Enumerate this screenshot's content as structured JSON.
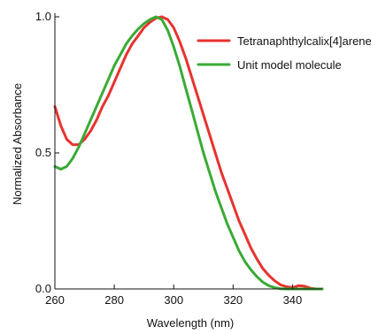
{
  "chart_data": {
    "type": "line",
    "title": "",
    "xlabel": "Wavelength (nm)",
    "ylabel": "Normalized Absorbance",
    "xlim": [
      260,
      350
    ],
    "ylim": [
      0.0,
      1.0
    ],
    "x_ticks": [
      260,
      280,
      300,
      320,
      340
    ],
    "x_tick_labels": [
      "260",
      "280",
      "300",
      "320",
      "340"
    ],
    "y_ticks": [
      0.0,
      0.5,
      1.0
    ],
    "y_tick_labels": [
      "0.0",
      "0.5",
      "1.0"
    ],
    "grid": false,
    "legend_position": "top-right",
    "series": [
      {
        "name": "Tetranaphthylcalix[4]arene",
        "color": "#e8322f",
        "points": [
          [
            260,
            0.67
          ],
          [
            262,
            0.6
          ],
          [
            264,
            0.55
          ],
          [
            266,
            0.53
          ],
          [
            268,
            0.53
          ],
          [
            270,
            0.55
          ],
          [
            272,
            0.58
          ],
          [
            274,
            0.62
          ],
          [
            276,
            0.67
          ],
          [
            278,
            0.71
          ],
          [
            280,
            0.76
          ],
          [
            282,
            0.81
          ],
          [
            284,
            0.86
          ],
          [
            286,
            0.9
          ],
          [
            288,
            0.93
          ],
          [
            290,
            0.96
          ],
          [
            292,
            0.98
          ],
          [
            294,
            0.995
          ],
          [
            296,
            1.0
          ],
          [
            298,
            0.99
          ],
          [
            300,
            0.96
          ],
          [
            302,
            0.91
          ],
          [
            304,
            0.85
          ],
          [
            306,
            0.78
          ],
          [
            308,
            0.71
          ],
          [
            310,
            0.64
          ],
          [
            312,
            0.57
          ],
          [
            314,
            0.5
          ],
          [
            316,
            0.43
          ],
          [
            318,
            0.37
          ],
          [
            320,
            0.31
          ],
          [
            322,
            0.25
          ],
          [
            324,
            0.2
          ],
          [
            326,
            0.15
          ],
          [
            328,
            0.11
          ],
          [
            330,
            0.075
          ],
          [
            332,
            0.05
          ],
          [
            334,
            0.03
          ],
          [
            336,
            0.015
          ],
          [
            338,
            0.008
          ],
          [
            340,
            0.005
          ],
          [
            342,
            0.012
          ],
          [
            344,
            0.01
          ],
          [
            346,
            0.003
          ],
          [
            348,
            0.0
          ],
          [
            350,
            0.0
          ]
        ]
      },
      {
        "name": "Unit model molecule",
        "color": "#3aaa35",
        "points": [
          [
            260,
            0.45
          ],
          [
            262,
            0.44
          ],
          [
            264,
            0.45
          ],
          [
            266,
            0.48
          ],
          [
            268,
            0.52
          ],
          [
            270,
            0.57
          ],
          [
            272,
            0.62
          ],
          [
            274,
            0.67
          ],
          [
            276,
            0.72
          ],
          [
            278,
            0.77
          ],
          [
            280,
            0.82
          ],
          [
            282,
            0.86
          ],
          [
            284,
            0.9
          ],
          [
            286,
            0.93
          ],
          [
            288,
            0.955
          ],
          [
            290,
            0.975
          ],
          [
            292,
            0.99
          ],
          [
            294,
            1.0
          ],
          [
            296,
            0.99
          ],
          [
            298,
            0.95
          ],
          [
            300,
            0.89
          ],
          [
            302,
            0.82
          ],
          [
            304,
            0.74
          ],
          [
            306,
            0.66
          ],
          [
            308,
            0.58
          ],
          [
            310,
            0.5
          ],
          [
            312,
            0.43
          ],
          [
            314,
            0.36
          ],
          [
            316,
            0.3
          ],
          [
            318,
            0.24
          ],
          [
            320,
            0.19
          ],
          [
            322,
            0.14
          ],
          [
            324,
            0.1
          ],
          [
            326,
            0.07
          ],
          [
            328,
            0.045
          ],
          [
            330,
            0.025
          ],
          [
            332,
            0.012
          ],
          [
            334,
            0.005
          ],
          [
            336,
            0.001
          ],
          [
            338,
            0.0
          ],
          [
            340,
            0.0
          ],
          [
            345,
            0.0
          ],
          [
            350,
            0.0
          ]
        ]
      }
    ]
  }
}
